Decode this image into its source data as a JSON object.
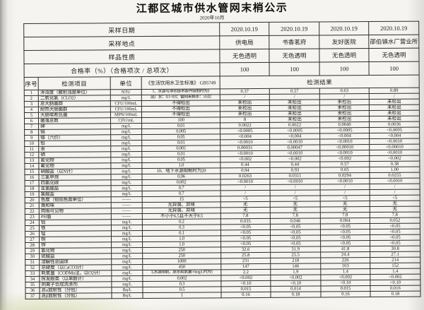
{
  "page": {
    "title": "江都区城市供水管网末梢公示",
    "subtitle": "2020年10月"
  },
  "info_rows": [
    {
      "label": "采样日期",
      "values": [
        "2020.10.19",
        "2020.10.19",
        "2020.10.19",
        "2020.10.19"
      ]
    },
    {
      "label": "采样地点",
      "values": [
        "供电局",
        "书香茗府",
        "友好医院",
        "邵伯镇水厂营业所"
      ]
    },
    {
      "label": "样品性质",
      "values": [
        "无色透明",
        "无色透明",
        "无色透明",
        "无色透明"
      ]
    },
    {
      "label": "合格率（%）（合格项次 / 总项次）",
      "values": [
        "100",
        "100",
        "100",
        "100"
      ]
    }
  ],
  "columns": {
    "index": "序号",
    "item": "检测项目",
    "unit": "单位",
    "standard": "《生活饮用水卫生标准》 GB5749",
    "results": "检测结果"
  },
  "rows": [
    {
      "no": "1",
      "item": "浑浊度（散射浊度单位）",
      "unit": "NTU",
      "limit": "1、水源与净水技术条件限制时为3",
      "values": [
        "0.37",
        "0.57",
        "0.63",
        "0.89"
      ]
    },
    {
      "no": "2",
      "item": "二氧化氯（CLO2）",
      "unit": "mg/L",
      "limit": "出厂水：0.1~0.8；管网末梢水：≥0.02",
      "values": [
        "/",
        "/",
        "/",
        "/"
      ]
    },
    {
      "no": "3",
      "item": "总大肠菌群",
      "unit": "CFU/100mL",
      "limit": "不得检出",
      "values": [
        "未检出",
        "未检出",
        "未检出",
        "未检出"
      ]
    },
    {
      "no": "4",
      "item": "耐热大肠菌群",
      "unit": "CFU/100mL",
      "limit": "不得检出",
      "values": [
        "未检出",
        "未检出",
        "未检出",
        "未检出"
      ]
    },
    {
      "no": "5",
      "item": "大肠埃希氏菌",
      "unit": "MPN/100mL",
      "limit": "不得检出",
      "values": [
        "未检出",
        "未检出",
        "未检出",
        "未检出"
      ]
    },
    {
      "no": "6",
      "item": "菌落总数",
      "unit": "CFU/mL",
      "limit": "100",
      "values": [
        "8",
        "未检出",
        "未检出",
        "未检出"
      ]
    },
    {
      "no": "7",
      "item": "砷",
      "unit": "mg/L",
      "limit": "0.01",
      "values": [
        "0.0022",
        "0.0022",
        "0.0040",
        "0.0036"
      ]
    },
    {
      "no": "8",
      "item": "镉",
      "unit": "mg/L",
      "limit": "0.005",
      "values": [
        "<0.0005",
        "<0.0005",
        "<0.0005",
        "<0.0005"
      ]
    },
    {
      "no": "9",
      "item": "铬（六价）",
      "unit": "mg/L",
      "limit": "0.05",
      "values": [
        "<0.004",
        "<0.004",
        "<0.004",
        "<0.004"
      ]
    },
    {
      "no": "10",
      "item": "铅",
      "unit": "mg/L",
      "limit": "0.01",
      "values": [
        "<0.0010",
        "<0.0010",
        "<0.0010",
        "<0.0010"
      ]
    },
    {
      "no": "11",
      "item": "汞",
      "unit": "mg/L",
      "limit": "0.001",
      "values": [
        "0.00031",
        "0.00047",
        "<0.00010",
        "<0.00010"
      ]
    },
    {
      "no": "12",
      "item": "硒",
      "unit": "mg/L",
      "limit": "0.01",
      "values": [
        "<0.0010",
        "<0.0010",
        "<0.0010",
        "<0.0010"
      ]
    },
    {
      "no": "13",
      "item": "氰化物",
      "unit": "mg/L",
      "limit": "0.05",
      "values": [
        "<0.002",
        "<0.002",
        "<0.002",
        "<0.002"
      ]
    },
    {
      "no": "14",
      "item": "氟化物",
      "unit": "mg/L",
      "limit": "1.0",
      "values": [
        "0.44",
        "0.44",
        "0.57",
        "0.38"
      ]
    },
    {
      "no": "15",
      "item": "硝酸盐（以N计）",
      "unit": "mg/L",
      "limit": "10、地下水源限制时为20",
      "values": [
        "0.94",
        "0.93",
        "0.65",
        "1.00"
      ]
    },
    {
      "no": "16",
      "item": "三氯甲烷",
      "unit": "mg/L",
      "limit": "0.06",
      "values": [
        "0.0263",
        "0.0311",
        "0.0294",
        "0.0255"
      ]
    },
    {
      "no": "17",
      "item": "四氯化碳",
      "unit": "mg/L",
      "limit": "0.002",
      "values": [
        "<0.0010",
        "<0.0010",
        "<0.0010",
        "<0.0010"
      ]
    },
    {
      "no": "18",
      "item": "亚氯酸盐",
      "unit": "mg/L",
      "limit": "0.7",
      "values": [
        "/",
        "/",
        "/",
        "/"
      ]
    },
    {
      "no": "19",
      "item": "氯酸盐",
      "unit": "mg/L",
      "limit": "0.7",
      "values": [
        "/",
        "/",
        "/",
        "/"
      ]
    },
    {
      "no": "20",
      "item": "色度（铂钴色度单位）",
      "unit": "——",
      "limit": "15",
      "values": [
        "<5",
        "<5",
        "<5",
        "<5"
      ]
    },
    {
      "no": "21",
      "item": "臭和味",
      "unit": "——",
      "limit": "无异臭、异味",
      "values": [
        "无",
        "无",
        "无",
        "无"
      ]
    },
    {
      "no": "22",
      "item": "肉眼可见物",
      "unit": "——",
      "limit": "无异臭、异味",
      "values": [
        "无",
        "无",
        "无",
        "无"
      ]
    },
    {
      "no": "23",
      "item": "PH值",
      "unit": "——",
      "limit": "不小于6.5且不大于8.5",
      "values": [
        "7.8",
        "7.8",
        "7.8",
        "7.8"
      ]
    },
    {
      "no": "24",
      "item": "铝",
      "unit": "mg/L",
      "limit": "0.2",
      "values": [
        "0.035",
        "0.046",
        "0.064",
        "0.052"
      ]
    },
    {
      "no": "25",
      "item": "铁",
      "unit": "mg/L",
      "limit": "0.3",
      "values": [
        "<0.05",
        "<0.05",
        "<0.05",
        "<0.05"
      ]
    },
    {
      "no": "26",
      "item": "锰",
      "unit": "mg/L",
      "limit": "0.1",
      "values": [
        "<0.05",
        "<0.05",
        "<0.05",
        "<0.05"
      ]
    },
    {
      "no": "27",
      "item": "铜",
      "unit": "mg/L",
      "limit": "1.0",
      "values": [
        "<0.05",
        "<0.05",
        "<0.05",
        "<0.05"
      ]
    },
    {
      "no": "28",
      "item": "锌",
      "unit": "mg/L",
      "limit": "1.0",
      "values": [
        "<0.05",
        "<0.05",
        "<0.05",
        "<0.05"
      ]
    },
    {
      "no": "29",
      "item": "氯化物",
      "unit": "mg/L",
      "limit": "250",
      "values": [
        "32.6",
        "31.9",
        "41.8",
        "30.8"
      ]
    },
    {
      "no": "30",
      "item": "硫酸盐",
      "unit": "mg/L",
      "limit": "250",
      "values": [
        "25.8",
        "25.5",
        "24.4",
        "27.1"
      ]
    },
    {
      "no": "31",
      "item": "溶解性总固体",
      "unit": "mg/L",
      "limit": "1000",
      "values": [
        "231",
        "218",
        "226",
        "214"
      ]
    },
    {
      "no": "32",
      "item": "总硬度（以CaCO3计）",
      "unit": "mg/L",
      "limit": "450",
      "values": [
        "147",
        "146",
        "163",
        "152"
      ]
    },
    {
      "no": "33",
      "item": "耗氧量（CODMn法，以O2计）",
      "unit": "mg/L",
      "limit": "3,水源限制，原水耗氧量>6mg/L时为5",
      "values": [
        "2.2",
        "1.9",
        "1.4",
        "1.4"
      ]
    },
    {
      "no": "34",
      "item": "挥发酚类（以苯酚计）",
      "unit": "mg/L",
      "limit": "0.002",
      "values": [
        "<0.002",
        "<0.002",
        "<0.002",
        "<0.002"
      ]
    },
    {
      "no": "35",
      "item": "阴离子合成洗涤剂",
      "unit": "mg/L",
      "limit": "0.3",
      "values": [
        "<0.10",
        "<0.10",
        "<0.10",
        "<0.10"
      ]
    },
    {
      "no": "36",
      "item": "总α放射性（分包）",
      "unit": "Bq/L",
      "limit": "0.5",
      "values": [
        "0.015",
        "0.014",
        "0.015",
        "0.016"
      ]
    },
    {
      "no": "37",
      "item": "总β放射性（分包）",
      "unit": "Bq/L",
      "limit": "1",
      "values": [
        "0.16",
        "0.18",
        "0.16",
        "0.18"
      ]
    }
  ]
}
